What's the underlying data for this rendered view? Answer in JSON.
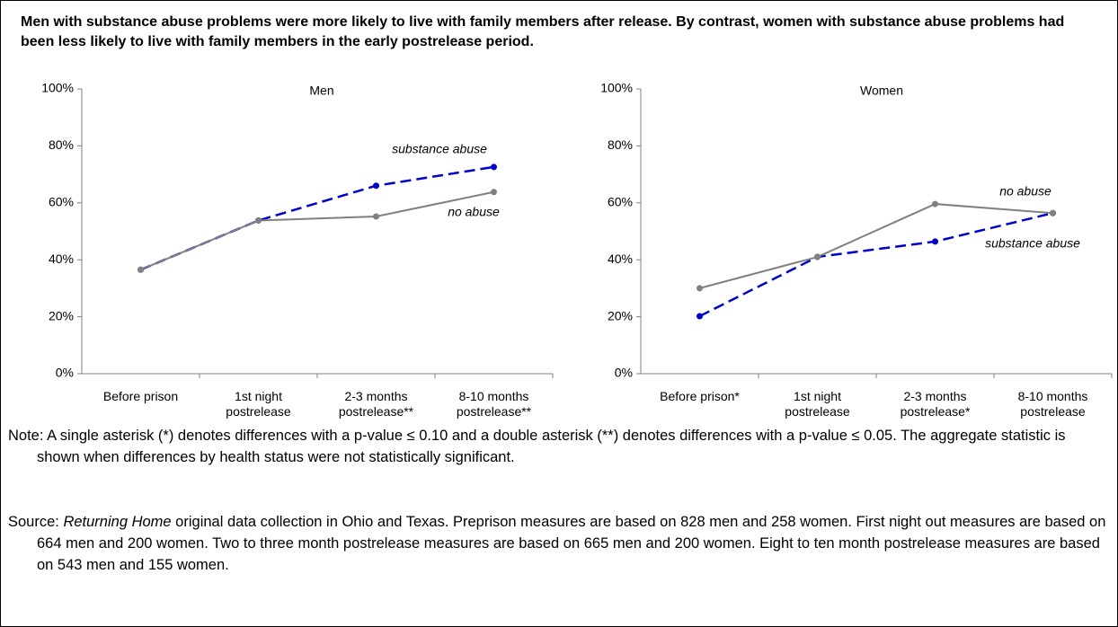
{
  "title": "Men with substance abuse problems were more likely to live with family members after release.  By contrast, women with substance abuse problems had been less likely to live with family members in the early postrelease period.",
  "chart_data": [
    {
      "type": "line",
      "title": "Men",
      "categories": [
        "Before prison",
        "1st night postrelease",
        "2-3 months postrelease**",
        "8-10 months postrelease**"
      ],
      "series": [
        {
          "name": "substance abuse",
          "color": "#0000cc",
          "dashed": true,
          "values": [
            36.5,
            53.8,
            66,
            72.6
          ]
        },
        {
          "name": "no abuse",
          "color": "#808080",
          "dashed": false,
          "values": [
            36.5,
            53.8,
            55.2,
            63.8
          ]
        }
      ],
      "ylim": [
        0,
        100
      ],
      "yticks": [
        {
          "value": 0,
          "label": "0%"
        },
        {
          "value": 20,
          "label": "20%"
        },
        {
          "value": 40,
          "label": "40%"
        },
        {
          "value": 60,
          "label": "60%"
        },
        {
          "value": 80,
          "label": "80%"
        },
        {
          "value": 100,
          "label": "100%"
        }
      ]
    },
    {
      "type": "line",
      "title": "Women",
      "categories": [
        "Before prison*",
        "1st night postrelease",
        "2-3 months postrelease*",
        "8-10 months postrelease"
      ],
      "series": [
        {
          "name": "substance abuse",
          "color": "#0000cc",
          "dashed": true,
          "values": [
            20.2,
            41,
            46.4,
            56.4
          ]
        },
        {
          "name": "no abuse",
          "color": "#808080",
          "dashed": false,
          "values": [
            30,
            41,
            59.6,
            56.4
          ]
        }
      ],
      "ylim": [
        0,
        100
      ],
      "yticks": [
        {
          "value": 0,
          "label": "0%"
        },
        {
          "value": 20,
          "label": "20%"
        },
        {
          "value": 40,
          "label": "40%"
        },
        {
          "value": 60,
          "label": "60%"
        },
        {
          "value": 80,
          "label": "80%"
        },
        {
          "value": 100,
          "label": "100%"
        }
      ]
    }
  ],
  "note": "Note: A single asterisk (*) denotes differences with a p-value ≤ 0.10 and a double asterisk (**) denotes differences with a p-value ≤ 0.05.  The aggregate statistic is shown when differences by health status were not statistically significant.",
  "source": {
    "prefix": "Source: ",
    "italic": "Returning Home",
    "text": " original data collection in Ohio and Texas.  Preprison measures are based on 828 men and 258 women.  First night out measures are based on 664 men and 200 women.  Two to three month postrelease measures are based on 665 men and 200 women.  Eight to ten month postrelease measures are based on 543 men and 155 women."
  }
}
